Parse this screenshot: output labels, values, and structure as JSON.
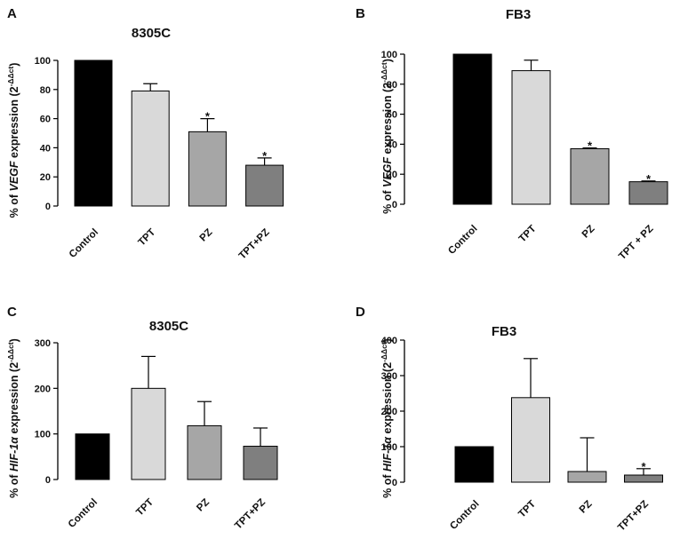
{
  "chart_data": [
    {
      "letter": "A",
      "type": "bar",
      "title": "8305C",
      "ylabel": {
        "prefix": "% of ",
        "gene": "VEGF",
        "suffix": " expression (2",
        "sup": "-ΔΔct",
        "close": ")"
      },
      "ylim": [
        0,
        100
      ],
      "yticks": [
        0,
        20,
        40,
        60,
        80,
        100
      ],
      "categories": [
        "Control",
        "TPT",
        "PZ",
        "TPT+PZ"
      ],
      "values": [
        100,
        79,
        51,
        28
      ],
      "errors": [
        0,
        5,
        9,
        5
      ],
      "significant": [
        false,
        false,
        true,
        true
      ],
      "colors": [
        "#000000",
        "#d9d9d9",
        "#a6a6a6",
        "#7f7f7f"
      ]
    },
    {
      "letter": "B",
      "type": "bar",
      "title": "FB3",
      "ylabel": {
        "prefix": "% of ",
        "gene": "VEGF",
        "suffix": " expression (2",
        "sup": "-ΔΔct",
        "close": ")"
      },
      "ylim": [
        0,
        100
      ],
      "yticks": [
        0,
        20,
        40,
        60,
        80,
        100
      ],
      "categories": [
        "Control",
        "TPT",
        "PZ",
        "TPT + PZ"
      ],
      "values": [
        100,
        89,
        37,
        15
      ],
      "errors": [
        0,
        7,
        0.5,
        0.5
      ],
      "significant": [
        false,
        false,
        true,
        true
      ],
      "colors": [
        "#000000",
        "#d9d9d9",
        "#a6a6a6",
        "#7f7f7f"
      ]
    },
    {
      "letter": "C",
      "type": "bar",
      "title": "8305C",
      "ylabel": {
        "prefix": "% of ",
        "gene": "HIF-1α",
        "suffix": " expression (2",
        "sup": "-ΔΔct",
        "close": ")"
      },
      "ylim": [
        0,
        300
      ],
      "yticks": [
        0,
        100,
        200,
        300
      ],
      "categories": [
        "Control",
        "TPT",
        "PZ",
        "TPT+PZ"
      ],
      "values": [
        100,
        200,
        118,
        73
      ],
      "errors": [
        0,
        70,
        53,
        40
      ],
      "significant": [
        false,
        false,
        false,
        false
      ],
      "colors": [
        "#000000",
        "#d9d9d9",
        "#a6a6a6",
        "#7f7f7f"
      ]
    },
    {
      "letter": "D",
      "type": "bar",
      "title": "FB3",
      "ylabel": {
        "prefix": "% of ",
        "gene": "HIF-1α",
        "suffix": " expression (2",
        "sup": "-ΔΔct",
        "close": ")"
      },
      "ylim": [
        0,
        400
      ],
      "yticks": [
        0,
        100,
        200,
        300,
        400
      ],
      "categories": [
        "Control",
        "TPT",
        "PZ",
        "TPT+PZ"
      ],
      "values": [
        100,
        238,
        30,
        20
      ],
      "errors": [
        0,
        110,
        95,
        18
      ],
      "significant": [
        false,
        false,
        false,
        true
      ],
      "colors": [
        "#000000",
        "#d9d9d9",
        "#a6a6a6",
        "#7f7f7f"
      ]
    }
  ],
  "significance_mark": "*"
}
